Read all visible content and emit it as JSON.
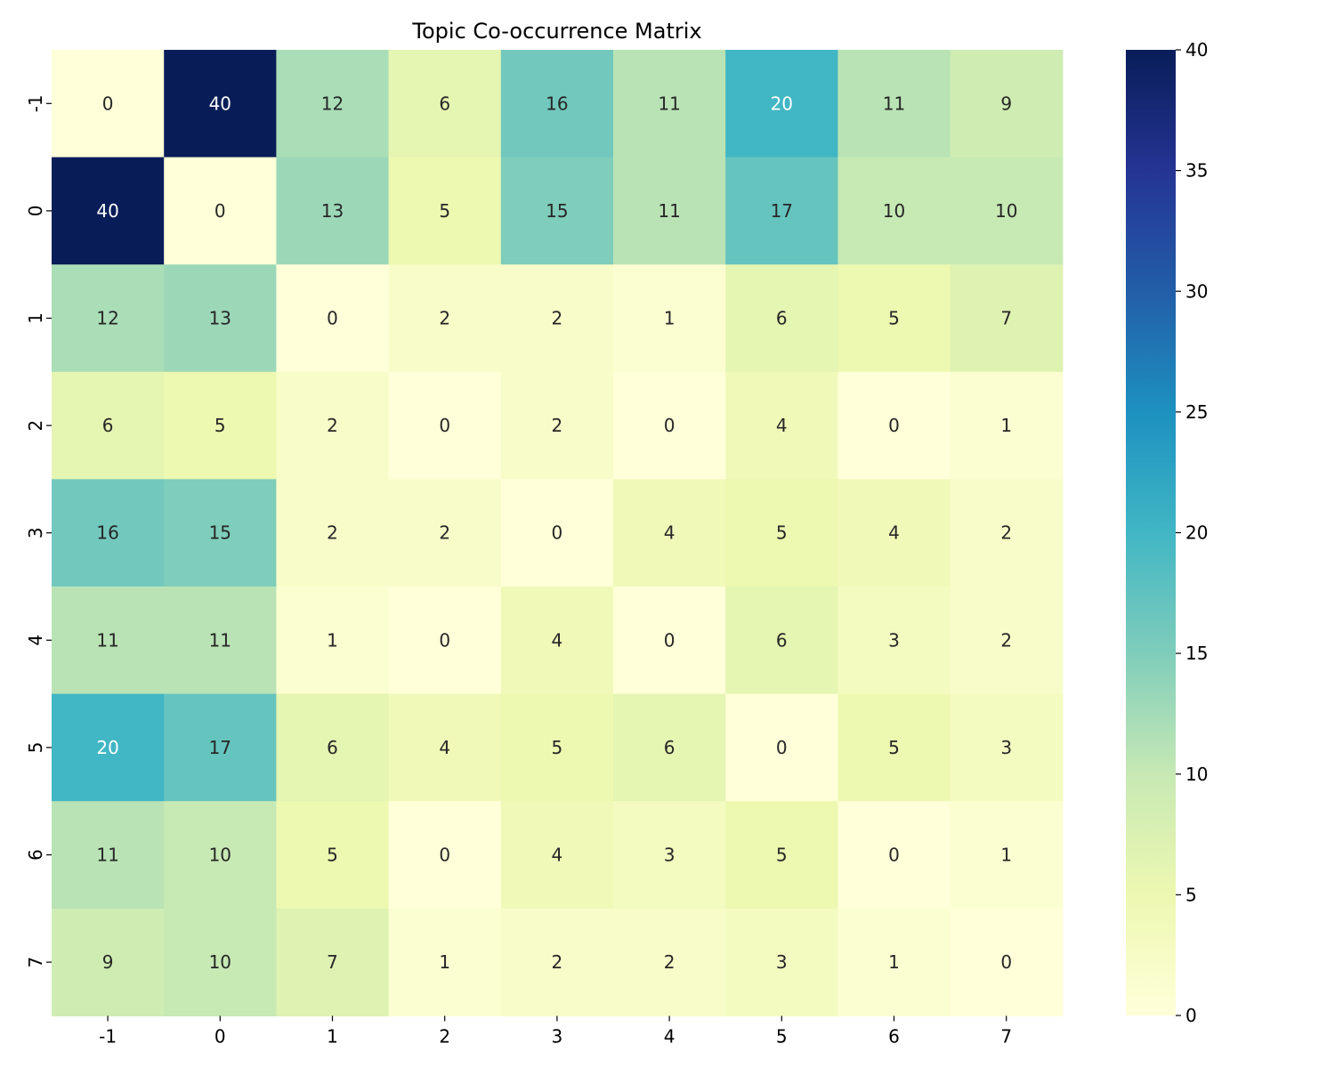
{
  "chart_data": {
    "type": "heatmap",
    "title": "Topic Co-occurrence Matrix",
    "xlabel": "",
    "ylabel": "",
    "x_categories": [
      "-1",
      "0",
      "1",
      "2",
      "3",
      "4",
      "5",
      "6",
      "7"
    ],
    "y_categories": [
      "-1",
      "0",
      "1",
      "2",
      "3",
      "4",
      "5",
      "6",
      "7"
    ],
    "values": [
      [
        0,
        40,
        12,
        6,
        16,
        11,
        20,
        11,
        9
      ],
      [
        40,
        0,
        13,
        5,
        15,
        11,
        17,
        10,
        10
      ],
      [
        12,
        13,
        0,
        2,
        2,
        1,
        6,
        5,
        7
      ],
      [
        6,
        5,
        2,
        0,
        2,
        0,
        4,
        0,
        1
      ],
      [
        16,
        15,
        2,
        2,
        0,
        4,
        5,
        4,
        2
      ],
      [
        11,
        11,
        1,
        0,
        4,
        0,
        6,
        3,
        2
      ],
      [
        20,
        17,
        6,
        4,
        5,
        6,
        0,
        5,
        3
      ],
      [
        11,
        10,
        5,
        0,
        4,
        3,
        5,
        0,
        1
      ],
      [
        9,
        10,
        7,
        1,
        2,
        2,
        3,
        1,
        0
      ]
    ],
    "colormap": "YlGnBu",
    "colorbar": {
      "min": 0,
      "max": 40,
      "ticks": [
        "0",
        "5",
        "10",
        "15",
        "20",
        "25",
        "30",
        "35",
        "40"
      ]
    },
    "annotations": true,
    "grid": false
  }
}
